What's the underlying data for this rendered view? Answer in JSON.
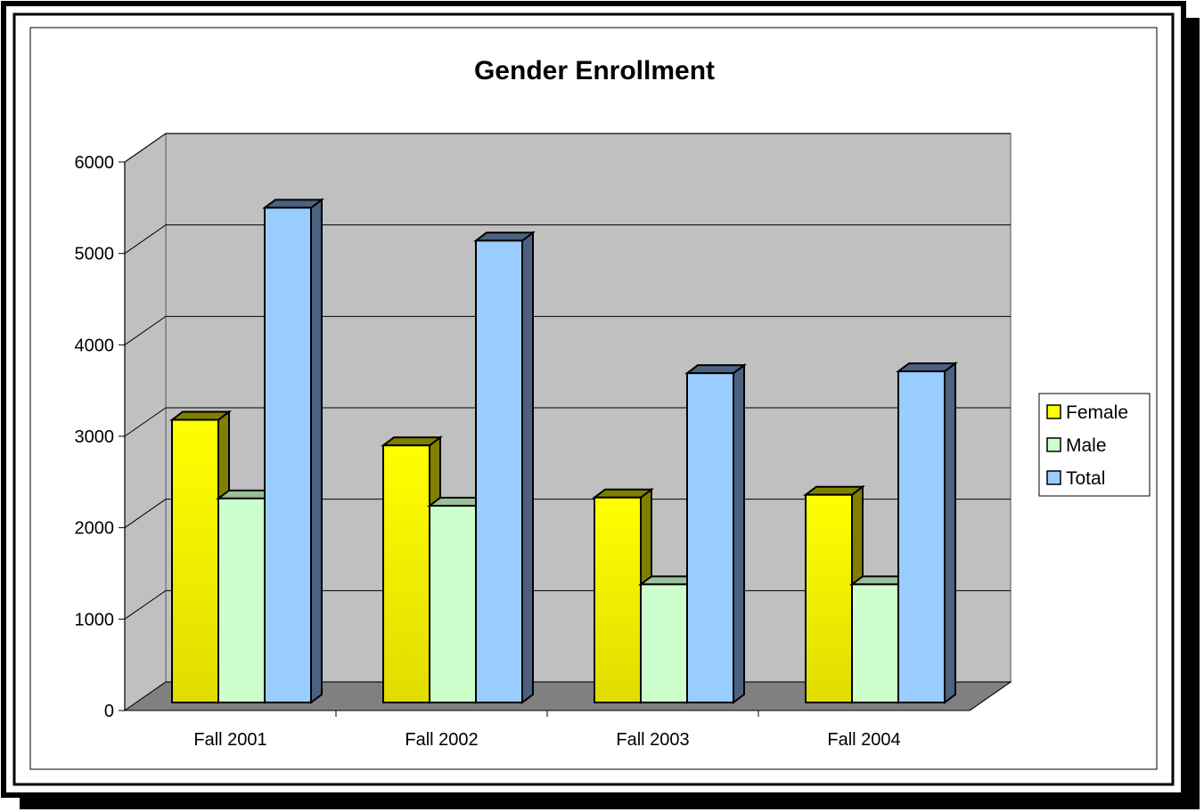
{
  "chart_data": {
    "type": "bar",
    "title": "Gender Enrollment",
    "xlabel": "",
    "ylabel": "",
    "categories": [
      "Fall 2001",
      "Fall 2002",
      "Fall 2003",
      "Fall 2004"
    ],
    "ylim": [
      0,
      6000
    ],
    "yticks": [
      0,
      1000,
      2000,
      3000,
      4000,
      5000,
      6000
    ],
    "grid": true,
    "legend_position": "right",
    "series": [
      {
        "name": "Female",
        "values": [
          3180,
          2900,
          2330,
          2360
        ],
        "color": "#ffff00"
      },
      {
        "name": "Male",
        "values": [
          2320,
          2240,
          1380,
          1380
        ],
        "color": "#ccffcc"
      },
      {
        "name": "Total",
        "values": [
          5500,
          5140,
          3690,
          3710
        ],
        "color": "#99ccff"
      }
    ]
  },
  "colors": {
    "wall": "#c0c0c0",
    "floor": "#808080",
    "female_side": "#808000",
    "male_side": "#99c099",
    "total_side": "#4d6180"
  }
}
